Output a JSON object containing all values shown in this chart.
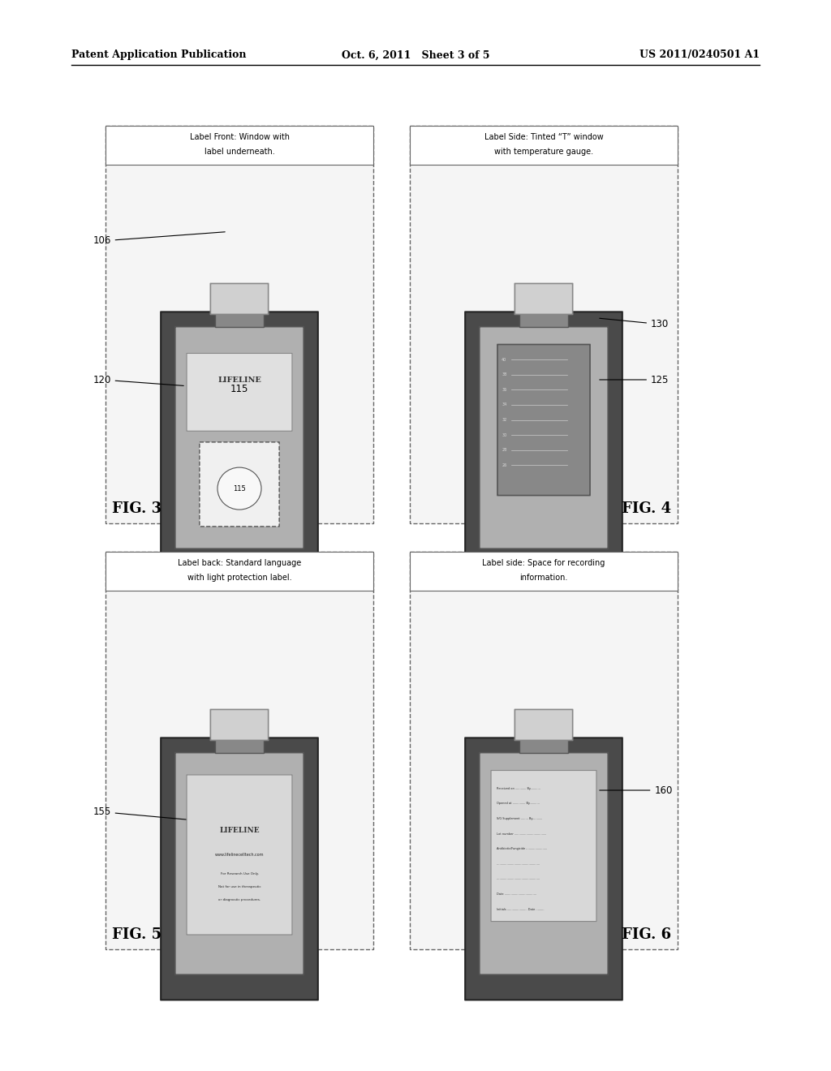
{
  "bg_color": "#ffffff",
  "header_text_left": "Patent Application Publication",
  "header_text_mid": "Oct. 6, 2011   Sheet 3 of 5",
  "header_text_right": "US 2011/0240501 A1",
  "fig3_caption_line1": "Label Front: Window with",
  "fig3_caption_line2": "label underneath.",
  "fig4_caption_line1": "Label Side: Tinted “T” window",
  "fig4_caption_line2": "with temperature gauge.",
  "fig5_caption_line1": "Label back: Standard language",
  "fig5_caption_line2": "with light protection label.",
  "fig6_caption_line1": "Label side: Space for recording",
  "fig6_caption_line2": "information.",
  "fig3_label": "FIG. 3",
  "fig4_label": "FIG. 4",
  "fig5_label": "FIG. 5",
  "fig6_label": "FIG. 6",
  "ref_106": "106",
  "ref_120": "120",
  "ref_115": "115",
  "ref_130": "130",
  "ref_125": "125",
  "ref_155": "155",
  "ref_160": "160",
  "panel_border_color": "#000000",
  "bottle_body_color": "#c8c8c8",
  "bottle_dark": "#555555",
  "bottle_cap_color": "#d8d8d8",
  "label_color": "#e8e8e8",
  "text_color": "#000000",
  "line_color": "#000000"
}
